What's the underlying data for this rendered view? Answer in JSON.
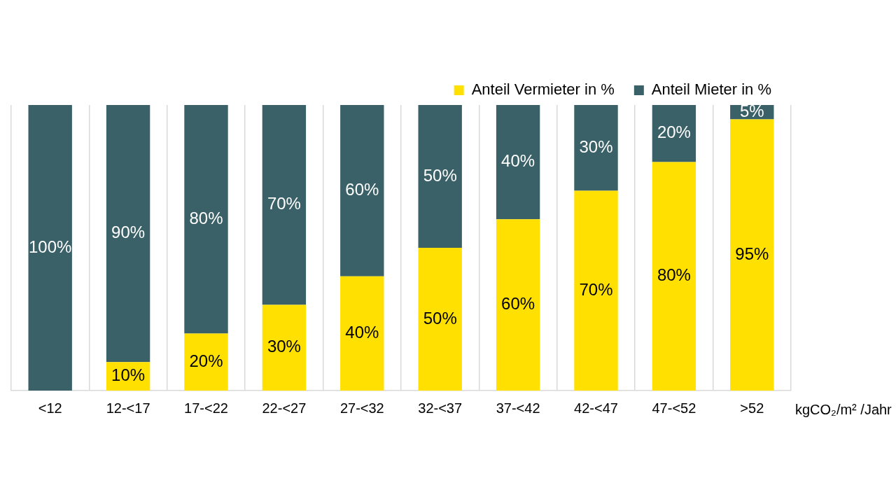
{
  "chart_data": {
    "type": "bar",
    "stacked": true,
    "categories": [
      "<12",
      "12-<17",
      "17-<22",
      "22-<27",
      "27-<32",
      "32-<37",
      "37-<42",
      "42-<47",
      "47-<52",
      ">52"
    ],
    "x_label": "kgCO₂/m² /Jahr",
    "ylim": [
      0,
      100
    ],
    "grid": "x",
    "legend": "top-right",
    "data_labels": true,
    "tick_labels": "x",
    "series": [
      {
        "name": "Anteil Vermieter in %",
        "color": "#FFE000",
        "values": [
          0,
          10,
          20,
          30,
          40,
          50,
          60,
          70,
          80,
          95
        ],
        "value_labels": [
          null,
          "10%",
          "20%",
          "30%",
          "40%",
          "50%",
          "60%",
          "70%",
          "80%",
          "95%"
        ]
      },
      {
        "name": "Anteil Mieter in %",
        "color": "#3A6068",
        "values": [
          100,
          90,
          80,
          70,
          60,
          50,
          40,
          30,
          20,
          5
        ],
        "value_labels": [
          "100%",
          "90%",
          "80%",
          "70%",
          "60%",
          "50%",
          "40%",
          "30%",
          "20%",
          "5%"
        ]
      }
    ]
  }
}
